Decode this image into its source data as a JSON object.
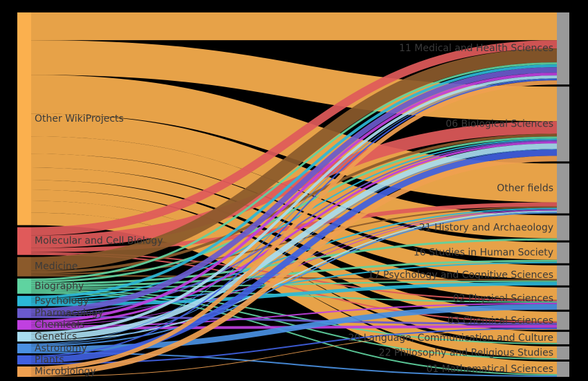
{
  "chart_data": {
    "type": "sankey",
    "sources": [
      {
        "name": "Other WikiProjects",
        "color": "#fbb04e"
      },
      {
        "name": "Molecular and Cell Biology",
        "color": "#e05a5a"
      },
      {
        "name": "Medicine",
        "color": "#8b5a2b"
      },
      {
        "name": "Biography",
        "color": "#5fd3a0"
      },
      {
        "name": "Psychology",
        "color": "#2bb8d8"
      },
      {
        "name": "Pharmacology",
        "color": "#6a5acd"
      },
      {
        "name": "Chemicals",
        "color": "#c040e0"
      },
      {
        "name": "Genetics",
        "color": "#a8dcf0"
      },
      {
        "name": "Astronomy",
        "color": "#4a90e2"
      },
      {
        "name": "Plants",
        "color": "#4060e0"
      },
      {
        "name": "Microbiology",
        "color": "#f0a050"
      }
    ],
    "targets": [
      {
        "name": "11 Medical and Health Sciences",
        "color": "#999999"
      },
      {
        "name": "06 Biological Sciences",
        "color": "#999999"
      },
      {
        "name": "Other fields",
        "color": "#999999"
      },
      {
        "name": "21 History and Archaeology",
        "color": "#999999"
      },
      {
        "name": "16 Studies in Human Society",
        "color": "#999999"
      },
      {
        "name": "17 Psychology and Cognitive Sciences",
        "color": "#999999"
      },
      {
        "name": "02 Physical Sciences",
        "color": "#999999"
      },
      {
        "name": "03 Chemical Sciences",
        "color": "#999999"
      },
      {
        "name": "20 Language, Communication and Culture",
        "color": "#999999"
      },
      {
        "name": "22 Philosophy and Religious Studies",
        "color": "#999999"
      },
      {
        "name": "01 Mathematical Sciences",
        "color": "#999999"
      }
    ],
    "links": [
      {
        "source": 0,
        "target": 0,
        "value": 40
      },
      {
        "source": 0,
        "target": 1,
        "value": 50
      },
      {
        "source": 0,
        "target": 2,
        "value": 56
      },
      {
        "source": 0,
        "target": 3,
        "value": 33
      },
      {
        "source": 0,
        "target": 4,
        "value": 25
      },
      {
        "source": 0,
        "target": 5,
        "value": 20
      },
      {
        "source": 0,
        "target": 6,
        "value": 18
      },
      {
        "source": 0,
        "target": 7,
        "value": 14
      },
      {
        "source": 0,
        "target": 8,
        "value": 16
      },
      {
        "source": 0,
        "target": 9,
        "value": 17
      },
      {
        "source": 0,
        "target": 10,
        "value": 18
      },
      {
        "source": 1,
        "target": 0,
        "value": 12
      },
      {
        "source": 1,
        "target": 1,
        "value": 18
      },
      {
        "source": 1,
        "target": 2,
        "value": 6
      },
      {
        "source": 1,
        "target": 6,
        "value": 2
      },
      {
        "source": 1,
        "target": 7,
        "value": 2
      },
      {
        "source": 2,
        "target": 0,
        "value": 20
      },
      {
        "source": 2,
        "target": 1,
        "value": 4
      },
      {
        "source": 2,
        "target": 2,
        "value": 2
      },
      {
        "source": 2,
        "target": 5,
        "value": 2
      },
      {
        "source": 3,
        "target": 0,
        "value": 3
      },
      {
        "source": 3,
        "target": 1,
        "value": 3
      },
      {
        "source": 3,
        "target": 3,
        "value": 3
      },
      {
        "source": 3,
        "target": 4,
        "value": 3
      },
      {
        "source": 3,
        "target": 5,
        "value": 2
      },
      {
        "source": 3,
        "target": 6,
        "value": 2
      },
      {
        "source": 3,
        "target": 8,
        "value": 2
      },
      {
        "source": 3,
        "target": 9,
        "value": 2
      },
      {
        "source": 3,
        "target": 10,
        "value": 2
      },
      {
        "source": 4,
        "target": 0,
        "value": 4
      },
      {
        "source": 4,
        "target": 1,
        "value": 2
      },
      {
        "source": 4,
        "target": 2,
        "value": 2
      },
      {
        "source": 4,
        "target": 4,
        "value": 2
      },
      {
        "source": 4,
        "target": 5,
        "value": 5
      },
      {
        "source": 5,
        "target": 0,
        "value": 8
      },
      {
        "source": 5,
        "target": 1,
        "value": 2
      },
      {
        "source": 5,
        "target": 2,
        "value": 1
      },
      {
        "source": 5,
        "target": 7,
        "value": 3
      },
      {
        "source": 6,
        "target": 0,
        "value": 4
      },
      {
        "source": 6,
        "target": 1,
        "value": 3
      },
      {
        "source": 6,
        "target": 2,
        "value": 1
      },
      {
        "source": 6,
        "target": 6,
        "value": 2
      },
      {
        "source": 6,
        "target": 7,
        "value": 4
      },
      {
        "source": 7,
        "target": 0,
        "value": 4
      },
      {
        "source": 7,
        "target": 1,
        "value": 8
      },
      {
        "source": 7,
        "target": 2,
        "value": 2
      },
      {
        "source": 8,
        "target": 0,
        "value": 1
      },
      {
        "source": 8,
        "target": 1,
        "value": 1
      },
      {
        "source": 8,
        "target": 2,
        "value": 2
      },
      {
        "source": 8,
        "target": 6,
        "value": 8
      },
      {
        "source": 8,
        "target": 10,
        "value": 2
      },
      {
        "source": 9,
        "target": 0,
        "value": 2
      },
      {
        "source": 9,
        "target": 1,
        "value": 9
      },
      {
        "source": 9,
        "target": 7,
        "value": 2
      },
      {
        "source": 10,
        "target": 0,
        "value": 6
      },
      {
        "source": 10,
        "target": 1,
        "value": 8
      },
      {
        "source": 10,
        "target": 7,
        "value": 1
      }
    ]
  }
}
